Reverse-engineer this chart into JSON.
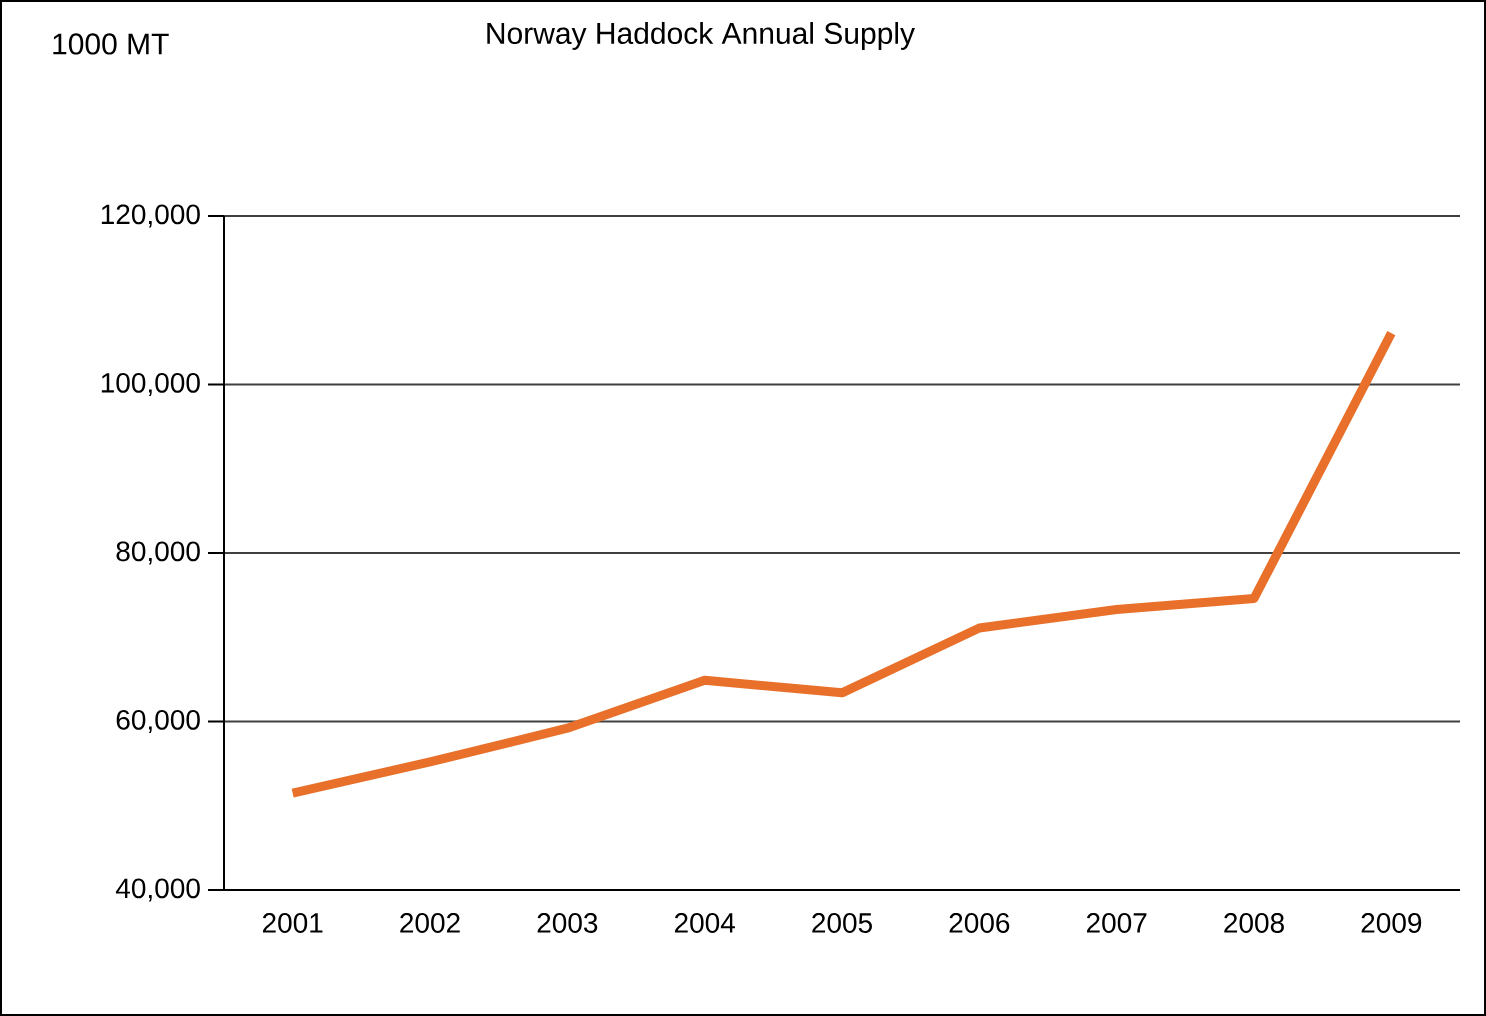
{
  "chart_data": {
    "type": "line",
    "title": "Norway Haddock Annual Supply",
    "ylabel": "1000 MT",
    "categories": [
      "2001",
      "2002",
      "2003",
      "2004",
      "2005",
      "2006",
      "2007",
      "2008",
      "2009"
    ],
    "series": [
      {
        "color": "#e8702a",
        "values": [
          51500,
          55200,
          59200,
          64900,
          63400,
          71100,
          73300,
          74600,
          106100
        ]
      }
    ],
    "ylim": [
      40000,
      120000
    ],
    "yticks": [
      {
        "value": 40000,
        "label": "40,000"
      },
      {
        "value": 60000,
        "label": "60,000"
      },
      {
        "value": 80000,
        "label": "80,000"
      },
      {
        "value": 100000,
        "label": "100,000"
      },
      {
        "value": 120000,
        "label": "120,000"
      }
    ],
    "grid": "y",
    "marker": "none",
    "line_style": "solid"
  }
}
